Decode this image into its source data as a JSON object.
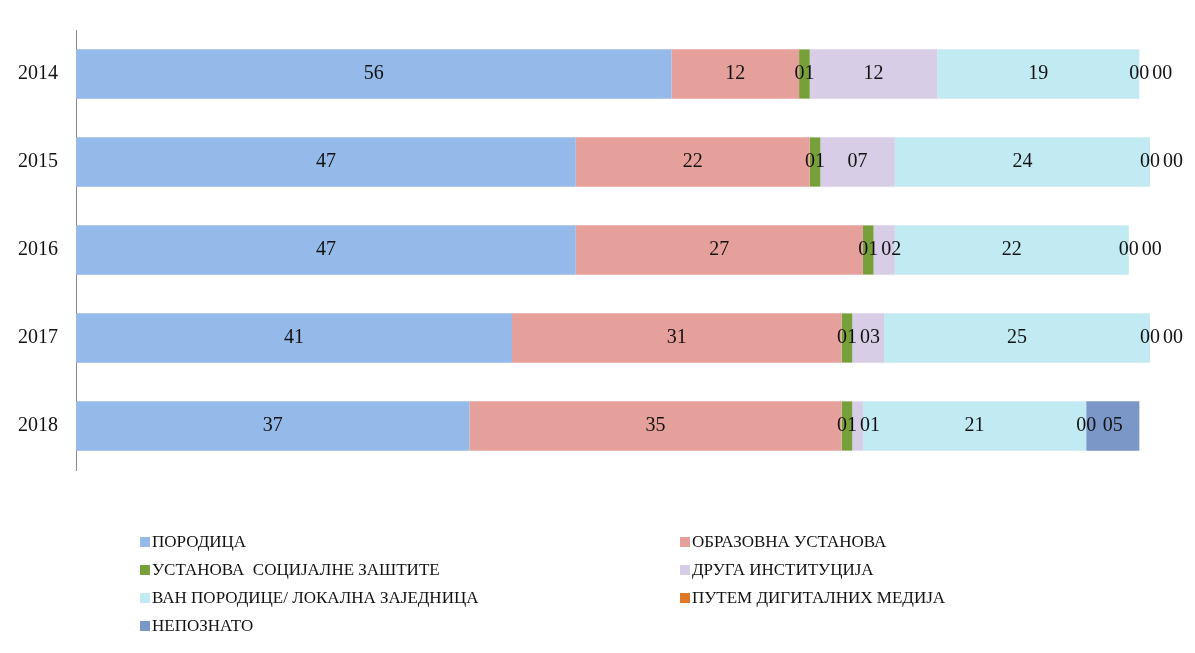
{
  "chart_data": {
    "type": "bar",
    "orientation": "horizontal",
    "stacked": true,
    "legend": "bottom",
    "grid": false,
    "categories": [
      "2014",
      "2015",
      "2016",
      "2017",
      "2018"
    ],
    "series": [
      {
        "name": "ПОРОДИЦА",
        "color": "#95b9e8",
        "values": [
          56,
          47,
          47,
          41,
          37
        ],
        "value_labels": [
          "56",
          "47",
          "47",
          "41",
          "37"
        ]
      },
      {
        "name": "ОБРАЗОВНА УСТАНОВА",
        "color": "#e6a09c",
        "values": [
          12,
          22,
          27,
          31,
          35
        ],
        "value_labels": [
          "12",
          "22",
          "27",
          "31",
          "35"
        ]
      },
      {
        "name": "УСТАНОВА  СОЦИЈАЛНЕ ЗАШТИТЕ",
        "color": "#77a03a",
        "values": [
          1,
          1,
          1,
          1,
          1
        ],
        "value_labels": [
          "01",
          "01",
          "01",
          "01",
          "01"
        ]
      },
      {
        "name": "ДРУГА ИНСТИТУЦИЈА",
        "color": "#d7cde6",
        "values": [
          12,
          7,
          2,
          3,
          1
        ],
        "value_labels": [
          "12",
          "07",
          "02",
          "03",
          "01"
        ]
      },
      {
        "name": "ВАН ПОРОДИЦЕ/ ЛОКАЛНА ЗАЈЕДНИЦА",
        "color": "#c2eaf3",
        "values": [
          19,
          24,
          22,
          25,
          21
        ],
        "value_labels": [
          "19",
          "24",
          "22",
          "25",
          "21"
        ]
      },
      {
        "name": "ПУТЕМ ДИГИТАЛНИХ МЕДИЈА",
        "color": "#e0782a",
        "values": [
          0,
          0,
          0,
          0,
          0
        ],
        "value_labels": [
          "00",
          "00",
          "00",
          "00",
          "00"
        ]
      },
      {
        "name": "НЕПОЗНАТО",
        "color": "#7b97c8",
        "values": [
          0,
          0,
          0,
          0,
          5
        ],
        "value_labels": [
          "00",
          "00",
          "00",
          "00",
          "05"
        ]
      }
    ]
  }
}
